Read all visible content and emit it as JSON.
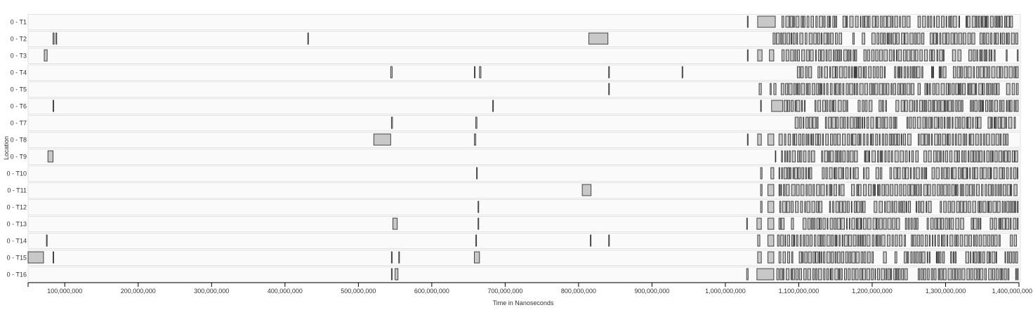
{
  "chart_data": {
    "type": "timeline",
    "xlabel": "Time in Nanoseconds",
    "ylabel": "Location",
    "xlim": [
      50000000,
      1400000000
    ],
    "x_ticks": [
      {
        "value": 100000000,
        "label": "100,000,000"
      },
      {
        "value": 200000000,
        "label": "200,000,000"
      },
      {
        "value": 300000000,
        "label": "300,000,000"
      },
      {
        "value": 400000000,
        "label": "400,000,000"
      },
      {
        "value": 500000000,
        "label": "500,000,000"
      },
      {
        "value": 600000000,
        "label": "600,000,000"
      },
      {
        "value": 700000000,
        "label": "700,000,000"
      },
      {
        "value": 800000000,
        "label": "800,000,000"
      },
      {
        "value": 900000000,
        "label": "900,000,000"
      },
      {
        "value": 1000000000,
        "label": "1,000,000,000"
      },
      {
        "value": 1100000000,
        "label": "1,100,000,000"
      },
      {
        "value": 1200000000,
        "label": "1,200,000,000"
      },
      {
        "value": 1300000000,
        "label": "1,300,000,000"
      },
      {
        "value": 1400000000,
        "label": "1,400,000,000"
      }
    ],
    "colors": {
      "event_fill": "#c8c8c8",
      "event_stroke": "#333333",
      "row_background": "#fafafa"
    },
    "dense_region_start": 1030000000,
    "rows": [
      {
        "label": "0 - T1",
        "events": [
          [
            1030000000,
            1031000000
          ],
          [
            1044000000,
            1068000000
          ]
        ],
        "dense_from": 1077000000,
        "dense_seed": 1
      },
      {
        "label": "0 - T2",
        "events": [
          [
            84000000,
            85500000
          ],
          [
            88000000,
            89000000
          ],
          [
            431000000,
            432000000
          ],
          [
            814000000,
            840000000
          ]
        ],
        "dense_from": 1065000000,
        "dense_seed": 2
      },
      {
        "label": "0 - T3",
        "events": [
          [
            72000000,
            76000000
          ],
          [
            1030000000,
            1031000000
          ],
          [
            1044000000,
            1050000000
          ],
          [
            1060000000,
            1066000000
          ]
        ],
        "dense_from": 1077000000,
        "dense_seed": 3
      },
      {
        "label": "0 - T4",
        "events": [
          [
            544000000,
            546000000
          ],
          [
            658000000,
            659000000
          ],
          [
            665000000,
            667000000
          ],
          [
            841000000,
            842000000
          ],
          [
            941000000,
            942000000
          ]
        ],
        "dense_from": 1098000000,
        "dense_seed": 4
      },
      {
        "label": "0 - T5",
        "events": [
          [
            841000000,
            842000000
          ],
          [
            1046000000,
            1049000000
          ],
          [
            1061000000,
            1062500000
          ],
          [
            1066000000,
            1069000000
          ]
        ],
        "dense_from": 1076000000,
        "dense_seed": 5
      },
      {
        "label": "0 - T6",
        "events": [
          [
            84000000,
            85000000
          ],
          [
            683000000,
            684000000
          ],
          [
            1048000000,
            1049000000
          ],
          [
            1063000000,
            1078000000
          ]
        ],
        "dense_from": 1080000000,
        "dense_seed": 6
      },
      {
        "label": "0 - T7",
        "events": [
          [
            545000000,
            546500000
          ],
          [
            660000000,
            661500000
          ]
        ],
        "dense_from": 1095000000,
        "dense_seed": 7
      },
      {
        "label": "0 - T8",
        "events": [
          [
            521000000,
            544000000
          ],
          [
            658000000,
            660000000
          ],
          [
            1030000000,
            1031000000
          ],
          [
            1044000000,
            1049000000
          ],
          [
            1058000000,
            1066000000
          ]
        ],
        "dense_from": 1073000000,
        "dense_seed": 8
      },
      {
        "label": "0 - T9",
        "events": [
          [
            77000000,
            84000000
          ]
        ],
        "dense_from": 1068000000,
        "dense_seed": 9
      },
      {
        "label": "0 - T10",
        "events": [
          [
            661000000,
            662000000
          ],
          [
            1048000000,
            1050000000
          ],
          [
            1062000000,
            1066000000
          ]
        ],
        "dense_from": 1073000000,
        "dense_seed": 10
      },
      {
        "label": "0 - T11",
        "events": [
          [
            805000000,
            817000000
          ],
          [
            1048000000,
            1050000000
          ],
          [
            1058000000,
            1066000000
          ]
        ],
        "dense_from": 1073000000,
        "dense_seed": 11
      },
      {
        "label": "0 - T12",
        "events": [
          [
            663000000,
            664000000
          ],
          [
            1048000000,
            1050000000
          ],
          [
            1058000000,
            1066000000
          ]
        ],
        "dense_from": 1074000000,
        "dense_seed": 12
      },
      {
        "label": "0 - T13",
        "events": [
          [
            547000000,
            553000000
          ],
          [
            663000000,
            664000000
          ],
          [
            1029000000,
            1030000000
          ],
          [
            1043000000,
            1049000000
          ],
          [
            1058000000,
            1066000000
          ]
        ],
        "dense_from": 1073000000,
        "dense_seed": 13
      },
      {
        "label": "0 - T14",
        "events": [
          [
            75000000,
            76000000
          ],
          [
            660000000,
            661000000
          ],
          [
            816000000,
            817000000
          ],
          [
            841000000,
            842000000
          ],
          [
            1044000000,
            1047000000
          ],
          [
            1058000000,
            1066000000
          ]
        ],
        "dense_from": 1071000000,
        "dense_seed": 14
      },
      {
        "label": "0 - T15",
        "events": [
          [
            50000000,
            71000000
          ],
          [
            84000000,
            85000000
          ],
          [
            545000000,
            546000000
          ],
          [
            555000000,
            556000000
          ],
          [
            658000000,
            665000000
          ],
          [
            1044000000,
            1049000000
          ],
          [
            1058000000,
            1066000000
          ]
        ],
        "dense_from": 1073000000,
        "dense_seed": 15
      },
      {
        "label": "0 - T16",
        "events": [
          [
            545000000,
            546000000
          ],
          [
            550000000,
            554000000
          ],
          [
            1029000000,
            1031000000
          ],
          [
            1043000000,
            1066000000
          ]
        ],
        "dense_from": 1070000000,
        "dense_seed": 16
      }
    ]
  }
}
